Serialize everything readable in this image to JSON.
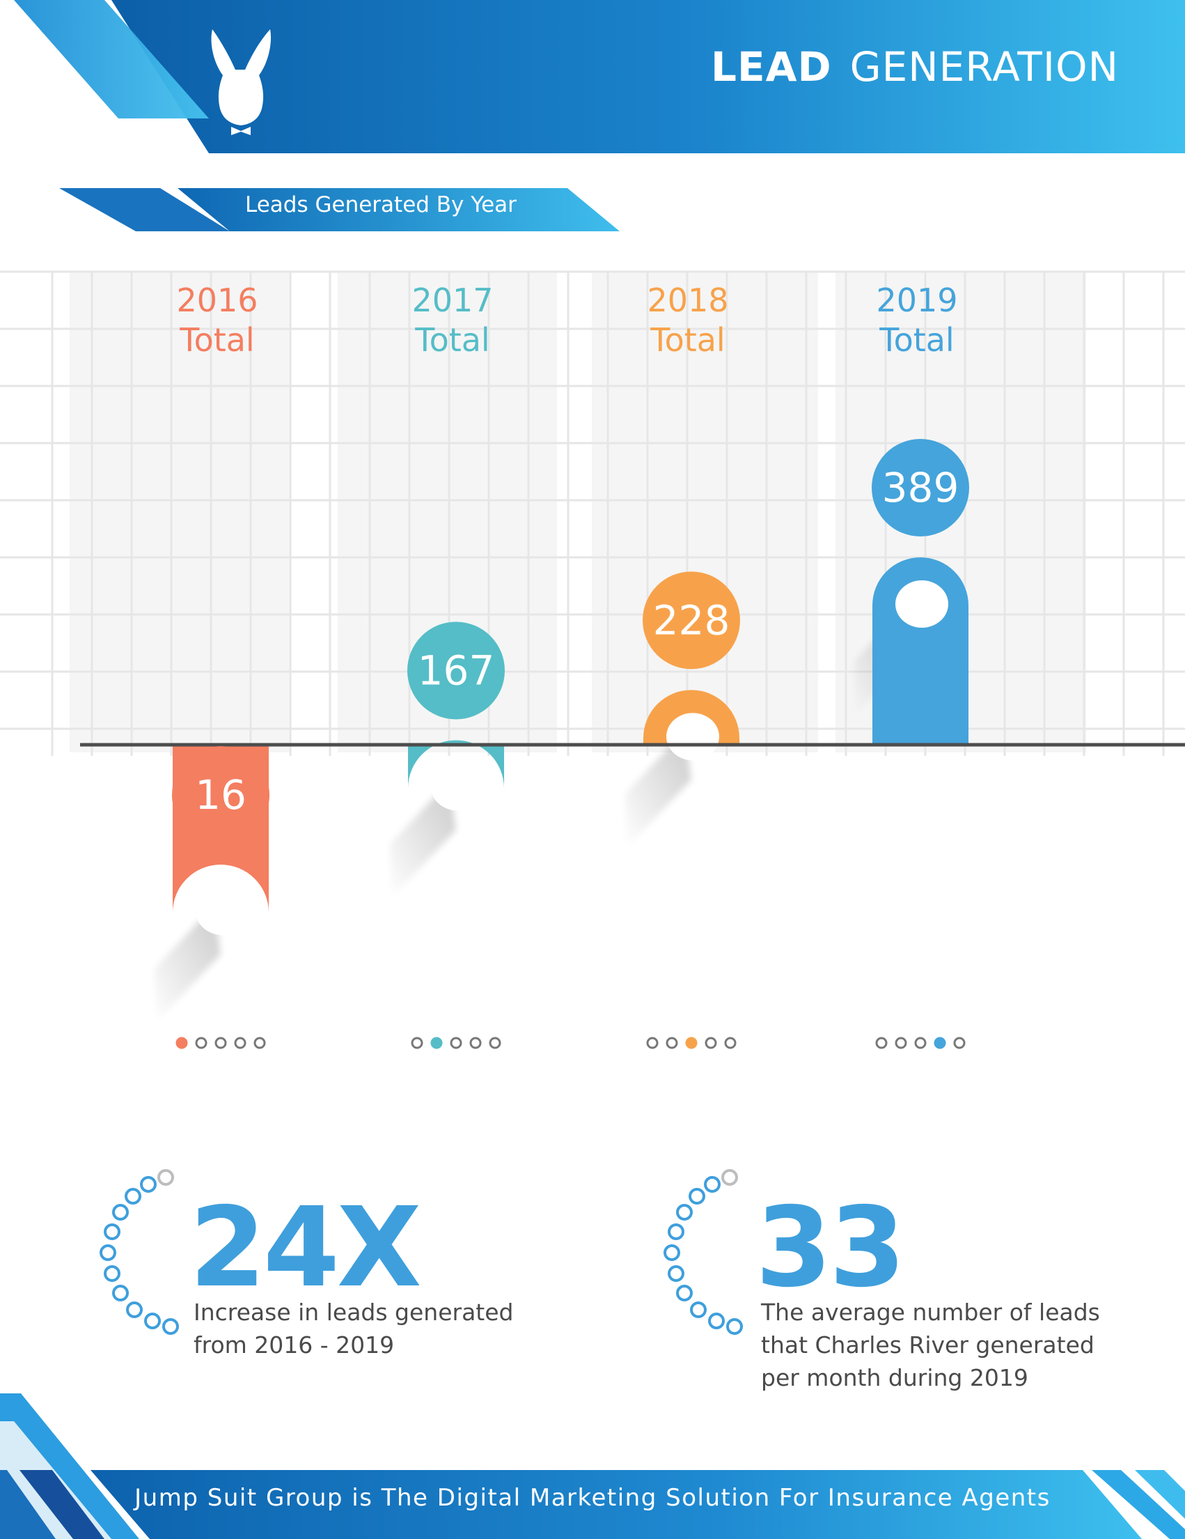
{
  "header": {
    "title_bold": "LEAD",
    "title_light": "GENERATION",
    "logo_icon": "donkey-head-bowtie-logo-icon"
  },
  "subtitle": "Leads Generated By Year",
  "colors": {
    "brand_blue": "#1a7ac8",
    "brand_light": "#3dbbea",
    "y2016": "#f47e60",
    "y2017": "#55bdc7",
    "y2018": "#f7a24b",
    "y2019": "#45a4db"
  },
  "chart_data": {
    "type": "bar",
    "categories": [
      "2016",
      "2017",
      "2018",
      "2019"
    ],
    "values": [
      16,
      167,
      228,
      389
    ],
    "category_labels": [
      {
        "year": "2016",
        "total": "Total",
        "value_label": "16"
      },
      {
        "year": "2017",
        "total": "Total",
        "value_label": "167"
      },
      {
        "year": "2018",
        "total": "Total",
        "value_label": "228"
      },
      {
        "year": "2019",
        "total": "Total",
        "value_label": "389"
      }
    ],
    "ylim": [
      0,
      450
    ],
    "grid": true,
    "title": "",
    "xlabel": "",
    "ylabel": ""
  },
  "stats": [
    {
      "value": "24X",
      "line1": "Increase in leads generated",
      "line2": "from 2016 - 2019",
      "line3": ""
    },
    {
      "value": "33",
      "line1": "The average number of leads",
      "line2": "that Charles River generated",
      "line3": "per month during 2019"
    }
  ],
  "footer": {
    "tagline": "Jump Suit Group is The Digital Marketing Solution For Insurance Agents"
  }
}
